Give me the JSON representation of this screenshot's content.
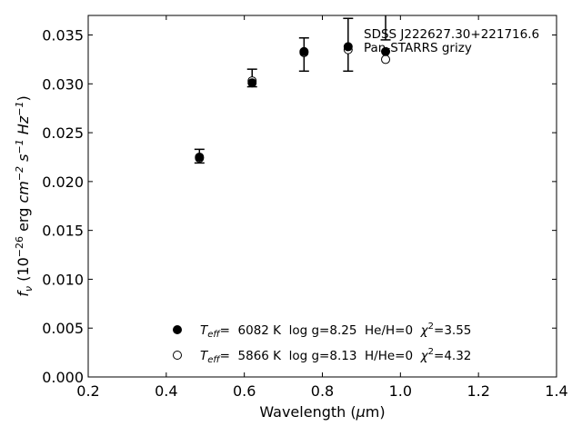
{
  "chart_data": {
    "type": "scatter",
    "xlabel": "Wavelength (μm)",
    "ylabel": "fν (10−26 erg cm−2 s−1 Hz−1)",
    "xlim": [
      0.2,
      1.4
    ],
    "ylim": [
      0.0,
      0.037
    ],
    "xticks": [
      "0.2",
      "0.4",
      "0.6",
      "0.8",
      "1.0",
      "1.2",
      "1.4"
    ],
    "yticks": [
      "0.000",
      "0.005",
      "0.010",
      "0.015",
      "0.020",
      "0.025",
      "0.030",
      "0.035"
    ],
    "grid": false,
    "annotation": {
      "line1": "SDSS J222627.30+221716.6",
      "line2": "Pan-STARRS grizy"
    },
    "observed": {
      "x": [
        0.485,
        0.62,
        0.753,
        0.866,
        0.962
      ],
      "y": [
        0.0226,
        0.0306,
        0.033,
        0.034,
        0.0385
      ],
      "yerr": [
        0.0007,
        0.0009,
        0.0017,
        0.0027,
        0.004
      ]
    },
    "series": [
      {
        "marker": "filled-circle",
        "teff_value": "=  6082 K  log g=8.25  He/H=0",
        "chi2_value": "=3.55",
        "x": [
          0.485,
          0.62,
          0.753,
          0.866,
          0.962
        ],
        "y": [
          0.0225,
          0.0301,
          0.0333,
          0.0338,
          0.0333
        ]
      },
      {
        "marker": "open-circle",
        "teff_value": "=  5866 K  log g=8.13  H/He=0",
        "chi2_value": "=4.32",
        "x": [
          0.485,
          0.62,
          0.753,
          0.866,
          0.962
        ],
        "y": [
          0.0224,
          0.0303,
          0.0332,
          0.0335,
          0.0325
        ]
      }
    ],
    "legend_position": "bottom-center"
  }
}
